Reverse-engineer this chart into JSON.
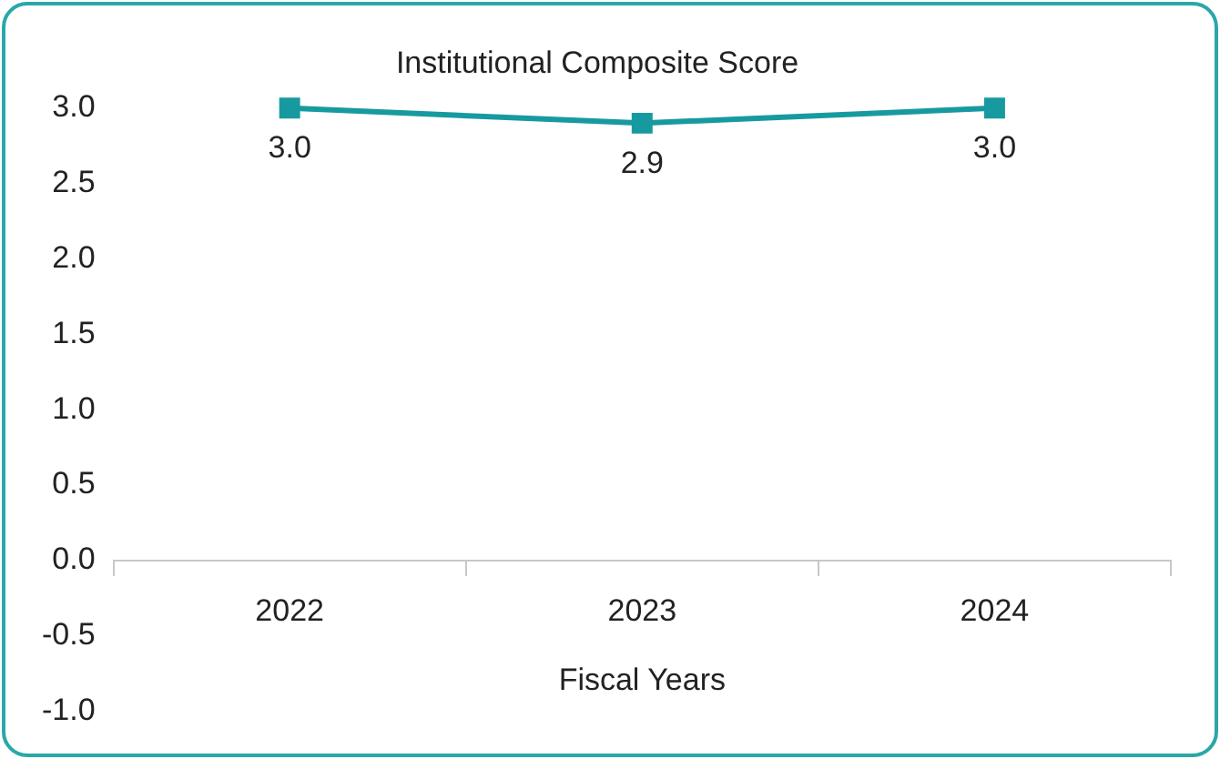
{
  "chart_data": {
    "type": "line",
    "title": "Institutional Composite Score",
    "xlabel": "Fiscal Years",
    "categories": [
      "2022",
      "2023",
      "2024"
    ],
    "series": [
      {
        "color": "#179a9f",
        "values": [
          3.0,
          2.9,
          3.0
        ],
        "value_labels": [
          "3.0",
          "2.9",
          "3.0"
        ]
      }
    ],
    "ylim": [
      -1,
      3
    ],
    "yticks": [
      {
        "value": -1,
        "label": "-1.0"
      },
      {
        "value": -0.5,
        "label": "-0.5"
      },
      {
        "value": 0,
        "label": "0.0"
      },
      {
        "value": 0.5,
        "label": "0.5"
      },
      {
        "value": 1,
        "label": "1.0"
      },
      {
        "value": 1.5,
        "label": "1.5"
      },
      {
        "value": 2,
        "label": "2.0"
      },
      {
        "value": 2.5,
        "label": "2.5"
      },
      {
        "value": 3,
        "label": "3.0"
      }
    ],
    "grid": false,
    "legend": false,
    "marker": "square",
    "line_style": "solid"
  }
}
